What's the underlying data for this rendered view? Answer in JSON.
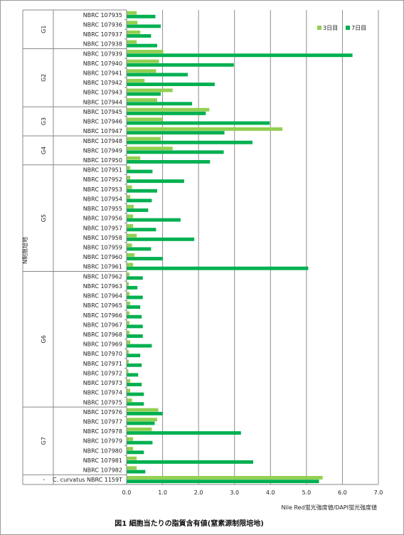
{
  "chart_data": {
    "type": "bar",
    "orientation": "horizontal",
    "title": "",
    "caption": "図1 細胞当たりの脂質含有値(窒素源制限培地)",
    "xlabel": "Nile Red蛍光強度値/DAPI蛍光強度値",
    "ylabel": "N制限培地",
    "xlim": [
      0.0,
      7.0
    ],
    "xticks": [
      "0.0",
      "1.0",
      "2.0",
      "3.0",
      "4.0",
      "5.0",
      "6.0",
      "7.0"
    ],
    "grid": "vertical",
    "legend_position": "top-right",
    "categories": [
      "NBRC 107935",
      "NBRC 107936",
      "NBRC 107937",
      "NBRC 107938",
      "NBRC 107939",
      "NBRC 107940",
      "NBRC 107941",
      "NBRC 107942",
      "NBRC 107943",
      "NBRC 107944",
      "NBRC 107945",
      "NBRC 107946",
      "NBRC 107947",
      "NBRC 107948",
      "NBRC 107949",
      "NBRC 107950",
      "NBRC 107951",
      "NBRC 107952",
      "NBRC 107953",
      "NBRC 107954",
      "NBRC 107955",
      "NBRC 107956",
      "NBRC 107957",
      "NBRC 107958",
      "NBRC 107959",
      "NBRC 107960",
      "NBRC 107961",
      "NBRC 107962",
      "NBRC 107963",
      "NBRC 107964",
      "NBRC 107965",
      "NBRC 107966",
      "NBRC 107967",
      "NBRC 107968",
      "NBRC 107969",
      "NBRC 107970",
      "NBRC 107971",
      "NBRC 107972",
      "NBRC 107973",
      "NBRC 107974",
      "NBRC 107975",
      "NBRC 107976",
      "NBRC 107977",
      "NBRC 107978",
      "NBRC 107979",
      "NBRC 107980",
      "NBRC 107981",
      "NBRC 107982",
      "C. curvatus NBRC 1159T"
    ],
    "series": [
      {
        "name": "3日目",
        "color": "#92d050",
        "values": [
          0.28,
          0.3,
          0.38,
          0.28,
          1.02,
          0.9,
          0.82,
          0.5,
          1.28,
          0.85,
          2.3,
          1.0,
          4.33,
          0.95,
          1.28,
          0.38,
          0.1,
          0.1,
          0.15,
          0.1,
          0.2,
          0.18,
          0.18,
          0.28,
          0.15,
          0.22,
          0.18,
          0.08,
          0.06,
          0.08,
          0.1,
          0.08,
          0.08,
          0.08,
          0.1,
          0.06,
          0.06,
          0.05,
          0.1,
          0.1,
          0.15,
          0.88,
          0.85,
          0.7,
          0.18,
          0.18,
          0.28,
          0.28,
          5.45
        ]
      },
      {
        "name": "7日目",
        "color": "#00b050",
        "values": [
          0.8,
          0.95,
          0.68,
          0.85,
          6.28,
          2.98,
          1.7,
          2.45,
          0.95,
          1.82,
          2.2,
          3.98,
          2.72,
          3.5,
          2.7,
          2.32,
          0.72,
          1.6,
          0.85,
          0.7,
          0.6,
          1.5,
          0.82,
          1.88,
          0.68,
          1.0,
          5.05,
          0.45,
          0.3,
          0.45,
          0.38,
          0.42,
          0.45,
          0.45,
          0.7,
          0.38,
          0.42,
          0.32,
          0.42,
          0.48,
          0.48,
          1.0,
          0.78,
          3.18,
          0.72,
          0.48,
          3.52,
          0.52,
          5.35
        ]
      }
    ],
    "groups": [
      {
        "label": "G1",
        "start": 0,
        "end": 3
      },
      {
        "label": "G2",
        "start": 4,
        "end": 9
      },
      {
        "label": "G3",
        "start": 10,
        "end": 12
      },
      {
        "label": "G4",
        "start": 13,
        "end": 15
      },
      {
        "label": "G5",
        "start": 16,
        "end": 26
      },
      {
        "label": "G6",
        "start": 27,
        "end": 40
      },
      {
        "label": "G7",
        "start": 41,
        "end": 47
      },
      {
        "label": "-",
        "start": 48,
        "end": 48
      }
    ]
  }
}
